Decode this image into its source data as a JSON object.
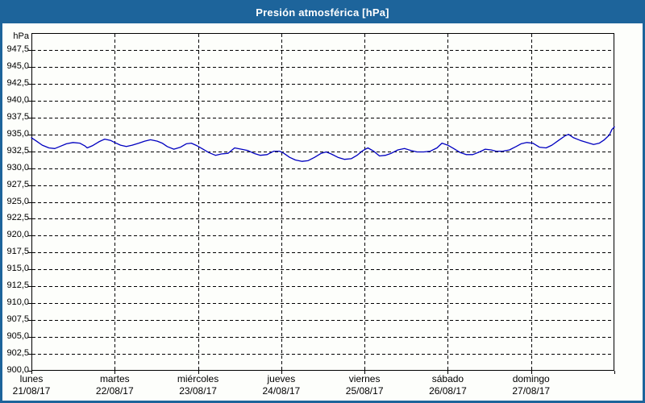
{
  "window": {
    "title": "Presión atmosférica [hPa]",
    "colors": {
      "title_bar": "#1d649b",
      "title_text": "#ffffff",
      "background": "#fdfefb",
      "frame": "#000000",
      "grid": "#000000",
      "series_line": "#0000c0",
      "label_text": "#000000"
    }
  },
  "chart_data": {
    "type": "line",
    "title": "Presión atmosférica [hPa]",
    "legend": "none",
    "grid": {
      "horizontal": "dashed",
      "vertical": "dashed"
    },
    "y_axis": {
      "unit": "hPa",
      "min": 900,
      "max": 950,
      "tick_step": 2.5,
      "ticks": [
        {
          "v": 947.5,
          "label": "947,5"
        },
        {
          "v": 945.0,
          "label": "945,0"
        },
        {
          "v": 942.5,
          "label": "942,5"
        },
        {
          "v": 940.0,
          "label": "940,0"
        },
        {
          "v": 937.5,
          "label": "937,5"
        },
        {
          "v": 935.0,
          "label": "935,0"
        },
        {
          "v": 932.5,
          "label": "932,5"
        },
        {
          "v": 930.0,
          "label": "930,0"
        },
        {
          "v": 927.5,
          "label": "927,5"
        },
        {
          "v": 925.0,
          "label": "925,0"
        },
        {
          "v": 922.5,
          "label": "922,5"
        },
        {
          "v": 920.0,
          "label": "920,0"
        },
        {
          "v": 917.5,
          "label": "917,5"
        },
        {
          "v": 915.0,
          "label": "915,0"
        },
        {
          "v": 912.5,
          "label": "912,5"
        },
        {
          "v": 910.0,
          "label": "910,0"
        },
        {
          "v": 907.5,
          "label": "907,5"
        },
        {
          "v": 905.0,
          "label": "905,0"
        },
        {
          "v": 902.5,
          "label": "902,5"
        },
        {
          "v": 900.0,
          "label": "900,0"
        }
      ]
    },
    "x_axis": {
      "span_days": 7,
      "days": [
        {
          "name": "lunes",
          "date": "21/08/17"
        },
        {
          "name": "martes",
          "date": "22/08/17"
        },
        {
          "name": "miércoles",
          "date": "23/08/17"
        },
        {
          "name": "jueves",
          "date": "24/08/17"
        },
        {
          "name": "viernes",
          "date": "25/08/17"
        },
        {
          "name": "sábado",
          "date": "26/08/17"
        },
        {
          "name": "domingo",
          "date": "27/08/17"
        }
      ]
    },
    "series": [
      {
        "name": "Presión atmosférica",
        "color": "#0000c0",
        "points": [
          [
            0.0,
            934.5
          ],
          [
            0.06,
            934.0
          ],
          [
            0.13,
            933.4
          ],
          [
            0.21,
            933.0
          ],
          [
            0.28,
            932.9
          ],
          [
            0.34,
            933.2
          ],
          [
            0.42,
            933.6
          ],
          [
            0.5,
            933.8
          ],
          [
            0.58,
            933.7
          ],
          [
            0.64,
            933.3
          ],
          [
            0.67,
            933.0
          ],
          [
            0.73,
            933.3
          ],
          [
            0.81,
            933.9
          ],
          [
            0.88,
            934.3
          ],
          [
            0.95,
            934.1
          ],
          [
            1.0,
            933.8
          ],
          [
            1.07,
            933.4
          ],
          [
            1.14,
            933.2
          ],
          [
            1.21,
            933.4
          ],
          [
            1.29,
            933.7
          ],
          [
            1.36,
            934.0
          ],
          [
            1.43,
            934.2
          ],
          [
            1.51,
            934.0
          ],
          [
            1.57,
            933.7
          ],
          [
            1.63,
            933.2
          ],
          [
            1.71,
            932.8
          ],
          [
            1.79,
            933.1
          ],
          [
            1.86,
            933.6
          ],
          [
            1.92,
            933.7
          ],
          [
            1.99,
            933.3
          ],
          [
            2.06,
            932.8
          ],
          [
            2.13,
            932.3
          ],
          [
            2.21,
            931.9
          ],
          [
            2.28,
            932.1
          ],
          [
            2.36,
            932.2
          ],
          [
            2.44,
            933.0
          ],
          [
            2.52,
            932.8
          ],
          [
            2.6,
            932.6
          ],
          [
            2.67,
            932.2
          ],
          [
            2.75,
            931.9
          ],
          [
            2.83,
            932.0
          ],
          [
            2.91,
            932.5
          ],
          [
            2.98,
            932.5
          ],
          [
            3.03,
            932.2
          ],
          [
            3.1,
            931.6
          ],
          [
            3.17,
            931.2
          ],
          [
            3.25,
            931.0
          ],
          [
            3.32,
            931.1
          ],
          [
            3.4,
            931.6
          ],
          [
            3.48,
            932.2
          ],
          [
            3.54,
            932.4
          ],
          [
            3.6,
            932.1
          ],
          [
            3.68,
            931.6
          ],
          [
            3.76,
            931.3
          ],
          [
            3.84,
            931.4
          ],
          [
            3.91,
            931.9
          ],
          [
            3.98,
            932.6
          ],
          [
            4.04,
            933.0
          ],
          [
            4.11,
            932.5
          ],
          [
            4.18,
            931.8
          ],
          [
            4.25,
            931.9
          ],
          [
            4.32,
            932.2
          ],
          [
            4.4,
            932.7
          ],
          [
            4.48,
            932.9
          ],
          [
            4.56,
            932.6
          ],
          [
            4.63,
            932.4
          ],
          [
            4.71,
            932.4
          ],
          [
            4.79,
            932.5
          ],
          [
            4.87,
            933.0
          ],
          [
            4.93,
            933.7
          ],
          [
            5.0,
            933.4
          ],
          [
            5.07,
            932.9
          ],
          [
            5.15,
            932.3
          ],
          [
            5.22,
            932.0
          ],
          [
            5.3,
            932.0
          ],
          [
            5.38,
            932.4
          ],
          [
            5.45,
            932.8
          ],
          [
            5.52,
            932.7
          ],
          [
            5.58,
            932.5
          ],
          [
            5.66,
            932.5
          ],
          [
            5.74,
            932.7
          ],
          [
            5.82,
            933.2
          ],
          [
            5.88,
            933.6
          ],
          [
            5.95,
            933.8
          ],
          [
            6.02,
            933.7
          ],
          [
            6.1,
            933.1
          ],
          [
            6.18,
            933.0
          ],
          [
            6.25,
            933.4
          ],
          [
            6.33,
            934.1
          ],
          [
            6.41,
            934.8
          ],
          [
            6.45,
            935.0
          ],
          [
            6.51,
            934.5
          ],
          [
            6.59,
            934.1
          ],
          [
            6.67,
            933.8
          ],
          [
            6.75,
            933.5
          ],
          [
            6.82,
            933.7
          ],
          [
            6.88,
            934.2
          ],
          [
            6.94,
            934.9
          ],
          [
            6.97,
            935.7
          ],
          [
            7.0,
            936.1
          ]
        ]
      }
    ]
  }
}
